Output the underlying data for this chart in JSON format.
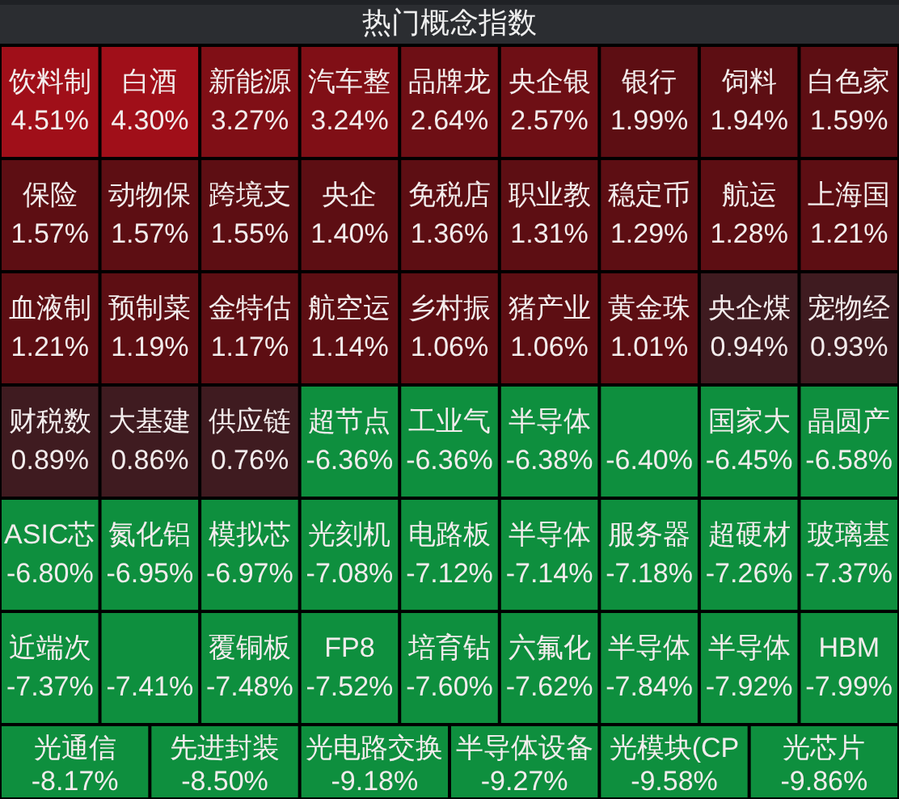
{
  "chart_data": {
    "type": "other",
    "title": "热门概念指数",
    "categories": [
      "饮料制",
      "白酒",
      "新能源",
      "汽车整",
      "品牌龙",
      "央企银",
      "银行",
      "饲料",
      "白色家",
      "保险",
      "动物保",
      "跨境支",
      "央企",
      "免税店",
      "职业教",
      "稳定币",
      "航运",
      "上海国",
      "血液制",
      "预制菜",
      "金特估",
      "航空运",
      "乡村振",
      "猪产业",
      "黄金珠",
      "央企煤",
      "宠物经",
      "财税数",
      "大基建",
      "供应链",
      "超节点",
      "工业气",
      "半导体",
      null,
      "国家大",
      "晶圆产",
      "ASIC芯",
      "氮化铝",
      "模拟芯",
      "光刻机",
      "电路板",
      "半导体",
      "服务器",
      "超硬材",
      "玻璃基",
      "近端次",
      null,
      "覆铜板",
      "FP8",
      "培育钻",
      "六氟化",
      "半导体",
      "半导体",
      "HBM",
      "光通信",
      "先进封装",
      "光电路交换",
      "半导体设备",
      "光模块(CP",
      "光芯片"
    ],
    "values": [
      4.51,
      4.3,
      3.27,
      3.24,
      2.64,
      2.57,
      1.99,
      1.94,
      1.59,
      1.57,
      1.57,
      1.55,
      1.4,
      1.36,
      1.31,
      1.29,
      1.28,
      1.21,
      1.21,
      1.19,
      1.17,
      1.14,
      1.06,
      1.06,
      1.01,
      0.94,
      0.93,
      0.89,
      0.86,
      0.76,
      -6.36,
      -6.36,
      -6.38,
      -6.4,
      -6.45,
      -6.58,
      -6.8,
      -6.95,
      -6.97,
      -7.08,
      -7.12,
      -7.14,
      -7.18,
      -7.26,
      -7.37,
      -7.37,
      -7.41,
      -7.48,
      -7.52,
      -7.6,
      -7.62,
      -7.84,
      -7.92,
      -7.99,
      -8.17,
      -8.5,
      -9.18,
      -9.27,
      -9.58,
      -9.86
    ],
    "value_labels": [
      "4.51%",
      "4.30%",
      "3.27%",
      "3.24%",
      "2.64%",
      "2.57%",
      "1.99%",
      "1.94%",
      "1.59%",
      "1.57%",
      "1.57%",
      "1.55%",
      "1.40%",
      "1.36%",
      "1.31%",
      "1.29%",
      "1.28%",
      "1.21%",
      "1.21%",
      "1.19%",
      "1.17%",
      "1.14%",
      "1.06%",
      "1.06%",
      "1.01%",
      "0.94%",
      "0.93%",
      "0.89%",
      "0.86%",
      "0.76%",
      "-6.36%",
      "-6.36%",
      "-6.38%",
      "-6.40%",
      "-6.45%",
      "-6.58%",
      "-6.80%",
      "-6.95%",
      "-6.97%",
      "-7.08%",
      "-7.12%",
      "-7.14%",
      "-7.18%",
      "-7.26%",
      "-7.37%",
      "-7.37%",
      "-7.41%",
      "-7.48%",
      "-7.52%",
      "-7.60%",
      "-7.62%",
      "-7.84%",
      "-7.92%",
      "-7.99%",
      "-8.17%",
      "-8.50%",
      "-9.18%",
      "-9.27%",
      "-9.58%",
      "-9.86%"
    ]
  }
}
